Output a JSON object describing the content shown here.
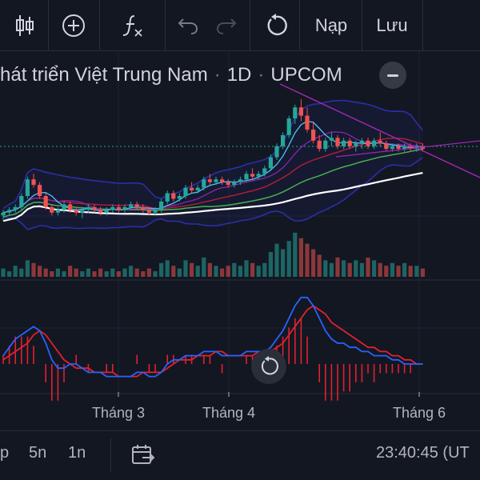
{
  "toolbar": {
    "add_label": "Nạp",
    "save_label": "Lưu",
    "icons": [
      "candles-icon",
      "add-indicator-icon",
      "formula-icon",
      "undo-icon",
      "redo-icon",
      "reset-icon"
    ]
  },
  "header": {
    "symbol_name": "hát triển Việt Trung Nam",
    "interval": "1D",
    "exchange": "UPCOM"
  },
  "xaxis": {
    "labels": [
      "Tháng 3",
      "Tháng 4",
      "Tháng 6"
    ]
  },
  "bottombar": {
    "range_p": "p",
    "range_5n": "5n",
    "range_1n": "1n",
    "clock": "23:40:45 (UT"
  },
  "colors": {
    "background": "#131722",
    "up": "#26a69a",
    "down": "#ef5350",
    "macd_line": "#2962ff",
    "signal_line": "#e0212f",
    "ma_white": "#ffffff",
    "ma_green": "#4caf50",
    "bollinger": "#2b2fa8",
    "trendline": "#9c27b0",
    "price_line": "#26a69a"
  },
  "chart_data": {
    "type": "candlestick",
    "candles": [
      [
        44,
        46,
        42,
        45
      ],
      [
        45,
        47,
        44,
        46
      ],
      [
        46,
        48,
        45,
        47
      ],
      [
        47,
        52,
        46,
        51
      ],
      [
        51,
        58,
        50,
        57
      ],
      [
        57,
        59,
        54,
        55
      ],
      [
        55,
        56,
        50,
        51
      ],
      [
        51,
        52,
        46,
        47
      ],
      [
        47,
        48,
        44,
        45
      ],
      [
        45,
        47,
        44,
        46
      ],
      [
        46,
        49,
        45,
        48
      ],
      [
        48,
        49,
        45,
        46
      ],
      [
        46,
        47,
        44,
        45
      ],
      [
        45,
        47,
        43,
        46
      ],
      [
        46,
        48,
        45,
        47
      ],
      [
        47,
        48,
        45,
        46
      ],
      [
        46,
        47,
        44,
        45
      ],
      [
        45,
        47,
        44,
        46
      ],
      [
        46,
        48,
        45,
        47
      ],
      [
        47,
        48,
        45,
        46
      ],
      [
        46,
        48,
        45,
        47
      ],
      [
        47,
        49,
        46,
        48
      ],
      [
        48,
        49,
        46,
        47
      ],
      [
        47,
        48,
        45,
        46
      ],
      [
        46,
        47,
        44,
        45
      ],
      [
        45,
        47,
        44,
        46
      ],
      [
        46,
        50,
        45,
        49
      ],
      [
        49,
        53,
        48,
        52
      ],
      [
        52,
        53,
        49,
        50
      ],
      [
        50,
        52,
        49,
        51
      ],
      [
        51,
        55,
        50,
        54
      ],
      [
        54,
        56,
        52,
        53
      ],
      [
        53,
        55,
        52,
        54
      ],
      [
        54,
        58,
        53,
        57
      ],
      [
        57,
        59,
        55,
        56
      ],
      [
        56,
        58,
        55,
        57
      ],
      [
        57,
        58,
        55,
        56
      ],
      [
        56,
        57,
        54,
        55
      ],
      [
        55,
        57,
        54,
        56
      ],
      [
        56,
        58,
        55,
        57
      ],
      [
        57,
        60,
        56,
        59
      ],
      [
        59,
        61,
        57,
        58
      ],
      [
        58,
        60,
        57,
        59
      ],
      [
        59,
        62,
        58,
        61
      ],
      [
        61,
        66,
        60,
        65
      ],
      [
        65,
        70,
        64,
        69
      ],
      [
        69,
        74,
        68,
        73
      ],
      [
        73,
        80,
        72,
        79
      ],
      [
        79,
        84,
        77,
        83
      ],
      [
        83,
        86,
        78,
        80
      ],
      [
        80,
        83,
        74,
        75
      ],
      [
        75,
        78,
        70,
        71
      ],
      [
        71,
        73,
        67,
        68
      ],
      [
        68,
        72,
        67,
        71
      ],
      [
        71,
        74,
        69,
        72
      ],
      [
        72,
        73,
        68,
        69
      ],
      [
        69,
        72,
        68,
        71
      ],
      [
        71,
        72,
        68,
        69
      ],
      [
        69,
        71,
        67,
        70
      ],
      [
        70,
        72,
        68,
        71
      ],
      [
        71,
        72,
        68,
        69
      ],
      [
        69,
        72,
        68,
        71
      ],
      [
        71,
        74,
        69,
        70
      ],
      [
        70,
        71,
        67,
        68
      ],
      [
        68,
        70,
        67,
        69
      ],
      [
        69,
        70,
        67,
        68
      ],
      [
        68,
        70,
        67,
        69
      ],
      [
        69,
        70,
        67,
        68
      ],
      [
        68,
        70,
        67,
        69
      ],
      [
        69,
        70,
        67,
        68
      ]
    ],
    "volume": [
      3,
      2,
      4,
      3,
      6,
      5,
      4,
      3,
      2,
      3,
      2,
      4,
      3,
      2,
      3,
      2,
      3,
      2,
      3,
      2,
      3,
      4,
      3,
      2,
      3,
      2,
      5,
      6,
      4,
      3,
      6,
      5,
      4,
      7,
      5,
      4,
      3,
      4,
      5,
      4,
      6,
      5,
      4,
      5,
      9,
      12,
      10,
      13,
      16,
      14,
      12,
      10,
      8,
      6,
      5,
      7,
      6,
      5,
      6,
      5,
      7,
      6,
      5,
      4,
      5,
      4,
      5,
      4,
      4,
      3
    ],
    "macd": [
      2,
      4,
      6,
      7,
      8,
      9,
      8,
      5,
      1,
      -1,
      -1,
      0,
      0,
      -1,
      -2,
      -2,
      -2,
      -3,
      -3,
      -3,
      -3,
      -3,
      -2,
      -2,
      -3,
      -3,
      -2,
      0,
      1,
      1,
      2,
      2,
      2,
      3,
      3,
      3,
      2,
      2,
      2,
      2,
      3,
      3,
      3,
      3,
      4,
      6,
      8,
      11,
      14,
      16,
      16,
      14,
      11,
      8,
      6,
      5,
      5,
      4,
      4,
      3,
      3,
      2,
      2,
      2,
      1,
      1,
      0,
      0,
      0,
      0
    ],
    "signal": [
      1,
      2,
      3,
      4,
      5,
      7,
      8,
      7,
      5,
      3,
      1,
      0,
      -1,
      -1,
      -1,
      -2,
      -2,
      -2,
      -2,
      -3,
      -3,
      -3,
      -3,
      -2,
      -2,
      -2,
      -2,
      -1,
      0,
      1,
      1,
      1,
      2,
      2,
      2,
      3,
      3,
      2,
      2,
      2,
      2,
      2,
      3,
      3,
      3,
      4,
      5,
      7,
      9,
      11,
      13,
      14,
      13,
      12,
      10,
      9,
      8,
      7,
      6,
      5,
      4,
      4,
      3,
      3,
      2,
      2,
      1,
      1,
      0,
      0
    ]
  }
}
